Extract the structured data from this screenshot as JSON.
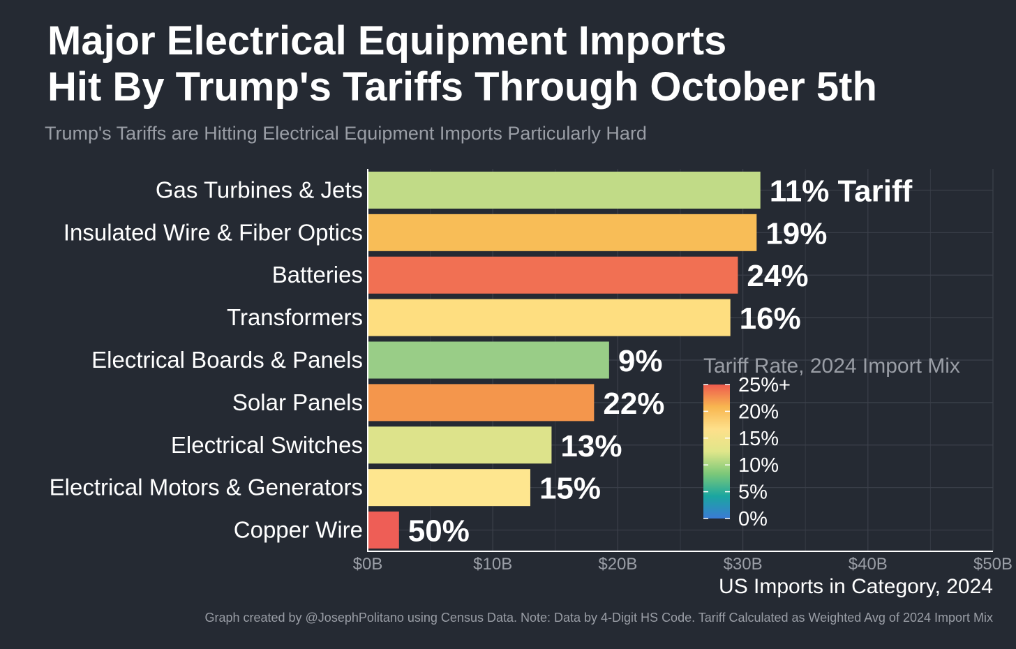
{
  "title_line1": "Major Electrical Equipment Imports",
  "title_line2": "Hit By Trump's Tariffs Through October 5th",
  "subtitle": "Trump's Tariffs are Hitting Electrical Equipment Imports Particularly Hard",
  "caption": "Graph created by @JosephPolitano using Census Data. Note: Data by 4-Digit HS Code. Tariff Calculated as Weighted Avg of 2024 Import Mix",
  "chart_data": {
    "type": "bar",
    "orientation": "horizontal",
    "categories": [
      "Gas Turbines & Jets",
      "Insulated Wire & Fiber Optics",
      "Batteries",
      "Transformers",
      "Electrical Boards & Panels",
      "Solar Panels",
      "Electrical Switches",
      "Electrical Motors & Generators",
      "Copper Wire"
    ],
    "values": [
      31.4,
      31.1,
      29.6,
      29.0,
      19.3,
      18.1,
      14.7,
      13.0,
      2.5
    ],
    "tariff_rates": [
      11,
      19,
      24,
      16,
      9,
      22,
      13,
      15,
      50
    ],
    "bar_labels": [
      "11% Tariff",
      "19%",
      "24%",
      "16%",
      "9%",
      "22%",
      "13%",
      "15%",
      "50%"
    ],
    "bar_colors": [
      "#c1db87",
      "#f8bd57",
      "#f17053",
      "#fede80",
      "#99cd87",
      "#f4964c",
      "#dde38b",
      "#fee68f",
      "#ee5e56"
    ],
    "xlabel": "US Imports in Category, 2024",
    "xlim": [
      0,
      50
    ],
    "x_ticks": [
      "$0B",
      "$10B",
      "$20B",
      "$30B",
      "$40B",
      "$50B"
    ],
    "grid": true,
    "legend": {
      "title": "Tariff Rate, 2024 Import Mix",
      "placement": "center-right",
      "scale_min": 0,
      "scale_max": 25,
      "labels": [
        "25%+",
        "20%",
        "15%",
        "10%",
        "5%",
        "0%"
      ],
      "label_values": [
        25,
        20,
        15,
        10,
        5,
        0
      ],
      "gradient_colors": [
        "#3a7bd5",
        "#1aa6a0",
        "#7cc879",
        "#e0e68a",
        "#fee08b",
        "#f8b650",
        "#ee5b4e"
      ]
    }
  }
}
